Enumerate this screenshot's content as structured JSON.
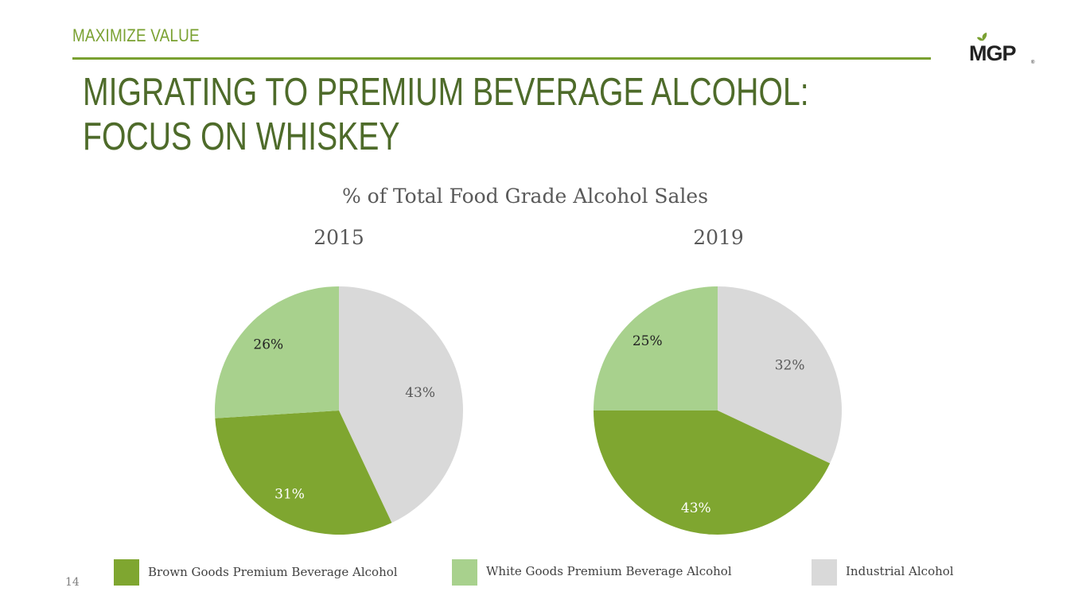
{
  "header": {
    "section_label": "MAXIMIZE VALUE",
    "title_line1": "MIGRATING TO PREMIUM BEVERAGE ALCOHOL:",
    "title_line2": "FOCUS ON WHISKEY"
  },
  "logo": {
    "text": "MGP",
    "icon": "leaf-icon"
  },
  "colors": {
    "accent": "#7aa131",
    "title": "#4e6b2a",
    "brown_goods": "#7fa630",
    "white_goods": "#a8d18d",
    "industrial": "#d9d9d9"
  },
  "page_number": "14",
  "chart_data": {
    "type": "pie",
    "title": "% of Total Food Grade Alcohol Sales",
    "categories": [
      "Industrial Alcohol",
      "Brown Goods Premium Beverage Alcohol",
      "White Goods Premium Beverage Alcohol"
    ],
    "series": [
      {
        "name": "2015",
        "values": [
          43,
          31,
          26
        ],
        "labels": [
          "43%",
          "31%",
          "26%"
        ]
      },
      {
        "name": "2019",
        "values": [
          32,
          43,
          25
        ],
        "labels": [
          "32%",
          "43%",
          "25%"
        ]
      }
    ],
    "legend_position": "bottom",
    "legend": [
      {
        "label": "Brown Goods Premium Beverage Alcohol",
        "color": "#7fa630"
      },
      {
        "label": "White Goods Premium Beverage Alcohol",
        "color": "#a8d18d"
      },
      {
        "label": "Industrial Alcohol",
        "color": "#d9d9d9"
      }
    ]
  }
}
